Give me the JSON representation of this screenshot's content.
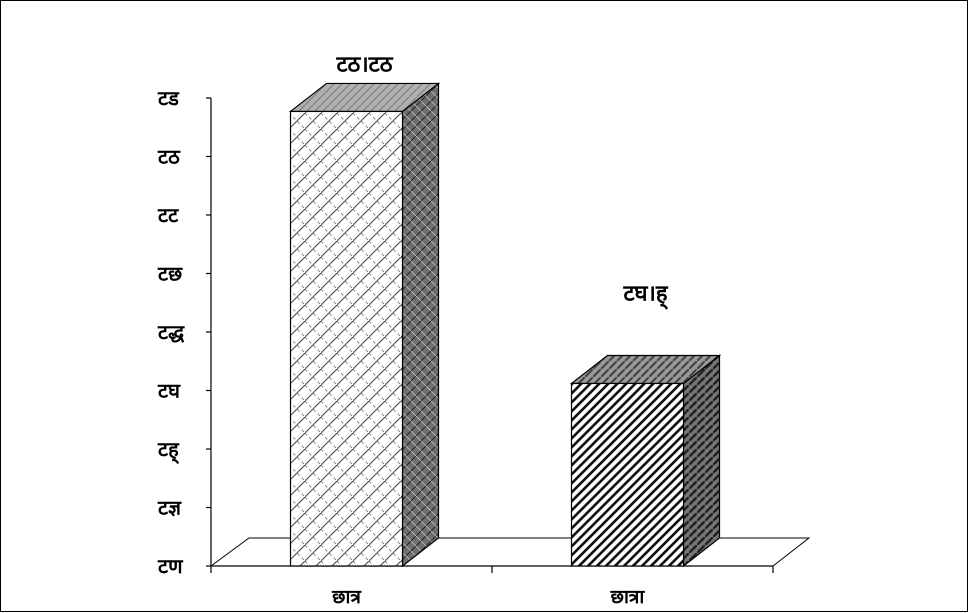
{
  "chart_data": {
    "type": "bar",
    "style": "3d-column",
    "categories": [
      "छात्र",
      "छात्रा"
    ],
    "values": [
      77.7,
      31.2
    ],
    "data_labels": [
      "टठ।टठ",
      "टघ।ह्"
    ],
    "y_tick_labels": [
      "टण",
      "टज्ञ",
      "टह्",
      "टघ",
      "टद्ध",
      "टछ",
      "टट",
      "टठ",
      "टड"
    ],
    "ylim": [
      0,
      80
    ],
    "title": "",
    "xlabel": "",
    "ylabel": "",
    "grid": false,
    "legend": "none",
    "bar_patterns": [
      "crosshatch-light",
      "diagonal-stripes"
    ],
    "colors": {
      "front": "#ffffff",
      "side": "#7a7a7a",
      "top": "#a9a9a9",
      "stroke": "#000000"
    }
  }
}
